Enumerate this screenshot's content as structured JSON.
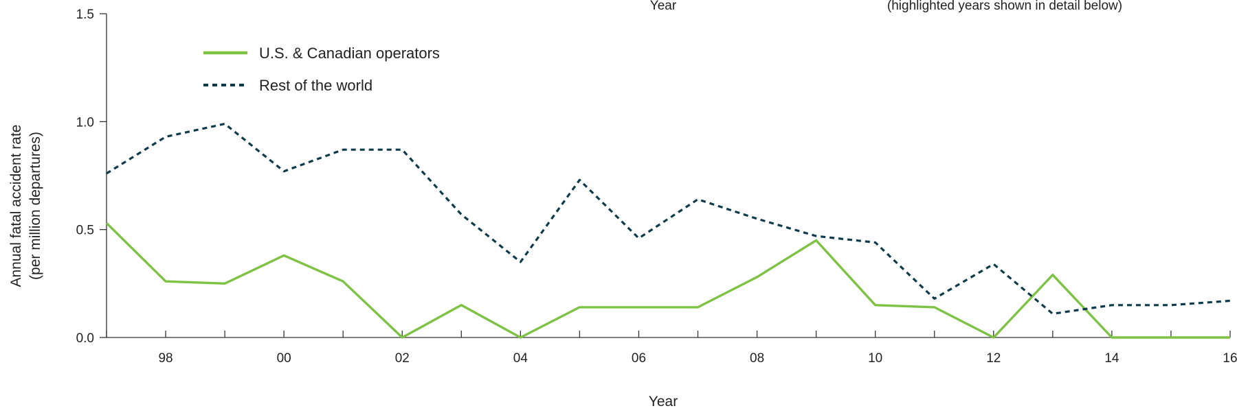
{
  "top_notes": {
    "left": "Year",
    "right": "(highlighted years shown in detail below)"
  },
  "chart_data": {
    "type": "line",
    "title": "",
    "xlabel": "Year",
    "ylabel_line1": "Annual fatal accident rate",
    "ylabel_line2": "(per million departures)",
    "x": [
      1997,
      1998,
      1999,
      2000,
      2001,
      2002,
      2003,
      2004,
      2005,
      2006,
      2007,
      2008,
      2009,
      2010,
      2011,
      2012,
      2013,
      2014,
      2015,
      2016
    ],
    "xlim": [
      1997,
      2016
    ],
    "ylim": [
      0,
      1.5
    ],
    "x_ticks": [
      1998,
      2000,
      2002,
      2004,
      2006,
      2008,
      2010,
      2012,
      2014,
      2016
    ],
    "x_tick_labels": [
      "98",
      "00",
      "02",
      "04",
      "06",
      "08",
      "10",
      "12",
      "14",
      "16"
    ],
    "y_ticks": [
      0,
      0.5,
      1.0,
      1.5
    ],
    "y_tick_labels": [
      "0.0",
      "0.5",
      "1.0",
      "1.5"
    ],
    "grid": false,
    "legend_position": "top-left",
    "series": [
      {
        "name": "U.S. & Canadian operators",
        "color": "#7dc242",
        "style": "solid",
        "values": [
          0.53,
          0.26,
          0.25,
          0.38,
          0.26,
          0.0,
          0.15,
          0.0,
          0.14,
          0.14,
          0.14,
          0.28,
          0.45,
          0.15,
          0.14,
          0.0,
          0.29,
          0.0,
          0.0,
          0.0
        ]
      },
      {
        "name": "Rest of the world",
        "color": "#0d3b4a",
        "style": "dashed",
        "values": [
          0.76,
          0.93,
          0.99,
          0.77,
          0.87,
          0.87,
          0.57,
          0.35,
          0.73,
          0.46,
          0.64,
          0.55,
          0.47,
          0.44,
          0.18,
          0.34,
          0.11,
          0.15,
          0.15,
          0.17
        ]
      }
    ]
  }
}
